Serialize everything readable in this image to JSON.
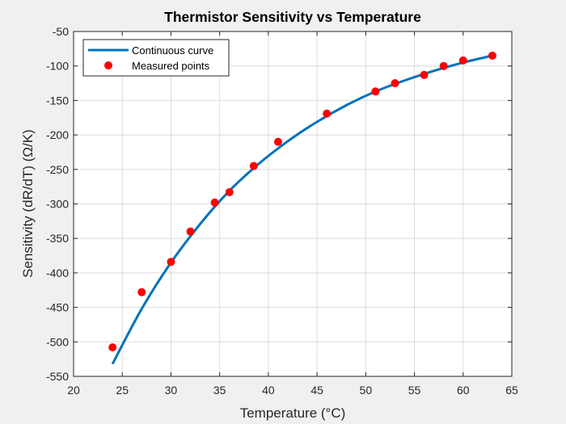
{
  "chart_data": {
    "type": "line",
    "title": "Thermistor Sensitivity vs Temperature",
    "xlabel": "Temperature (°C)",
    "ylabel": "Sensitivity (dR/dT) (Ω/K)",
    "xlim": [
      20,
      65
    ],
    "ylim": [
      -550,
      -50
    ],
    "xticks": [
      20,
      25,
      30,
      35,
      40,
      45,
      50,
      55,
      60,
      65
    ],
    "yticks": [
      -550,
      -500,
      -450,
      -400,
      -350,
      -300,
      -250,
      -200,
      -150,
      -100,
      -50
    ],
    "grid": true,
    "legend_position": "top-left",
    "series": [
      {
        "name": "Continuous curve",
        "kind": "line",
        "color": "#0072BD",
        "x": [
          24,
          27,
          30,
          33,
          36,
          39,
          42,
          45,
          48,
          51,
          54,
          57,
          60,
          63
        ],
        "y": [
          -532,
          -452,
          -385,
          -329,
          -281,
          -242,
          -209,
          -181,
          -157,
          -137,
          -121,
          -107,
          -95,
          -85
        ]
      },
      {
        "name": "Measured points",
        "kind": "scatter",
        "color": "#FF0000",
        "x": [
          24,
          27,
          30,
          32,
          34.5,
          36,
          38.5,
          41,
          46,
          51,
          53,
          56,
          58,
          60,
          63
        ],
        "y": [
          -508,
          -428,
          -384,
          -340,
          -298,
          -283,
          -245,
          -210,
          -169,
          -137,
          -125,
          -113,
          -100,
          -92,
          -85
        ]
      }
    ]
  }
}
